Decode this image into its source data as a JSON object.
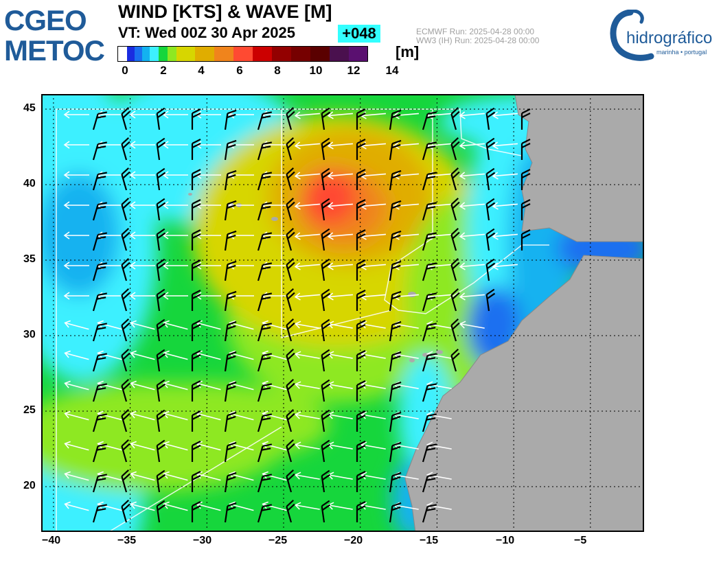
{
  "header": {
    "logo_left": [
      "CGEO",
      "METOC"
    ],
    "title": "WIND [KTS] & WAVE [M]",
    "valid_time": "VT: Wed 00Z 30 Apr 2025",
    "lead_time": "+048",
    "run_info": [
      "ECMWF    Run: 2025-04-28 00:00",
      "WW3 (IH) Run: 2025-04-28 00:00"
    ],
    "logo_right_name": "hidrográfico",
    "logo_right_tagline": "marinha • portugal"
  },
  "colorbar": {
    "unit": "[m]",
    "ticks": [
      "0",
      "2",
      "4",
      "6",
      "8",
      "10",
      "12",
      "14"
    ],
    "colors": [
      "#ffffff",
      "#1a2ce0",
      "#1a6ff0",
      "#13b2f0",
      "#3df0ff",
      "#16d63c",
      "#8ee822",
      "#d7d600",
      "#e0ad00",
      "#f0841c",
      "#ff4a32",
      "#cc0000",
      "#930000",
      "#760000",
      "#5a0000",
      "#4a104e",
      "#5a1070"
    ]
  },
  "map": {
    "x_ticks": [
      "−40",
      "−35",
      "−30",
      "−25",
      "−20",
      "−15",
      "−10",
      "−5"
    ],
    "y_ticks": [
      "45",
      "40",
      "35",
      "30",
      "25",
      "20"
    ],
    "lon_range": [
      -40.8,
      -1.5
    ],
    "lat_range": [
      17,
      46
    ]
  }
}
